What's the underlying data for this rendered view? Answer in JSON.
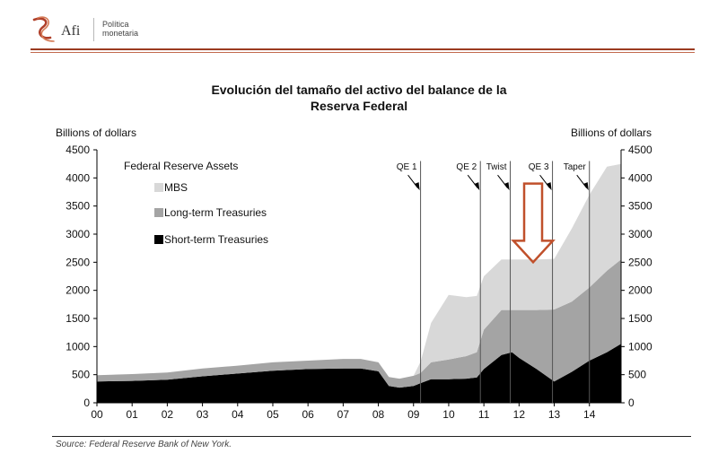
{
  "header": {
    "brand": "Afi",
    "section_line1": "Política",
    "section_line2": "monetaria"
  },
  "source": "Source: Federal Reserve Bank of New York.",
  "colors": {
    "accent": "#9b3b21",
    "mbs": "#d8d8d8",
    "long_term": "#a4a4a4",
    "short_term": "#000000",
    "arrow": "#c0502b"
  },
  "chart_data": {
    "type": "area",
    "stacked": true,
    "title_line1": "Evolución del tamaño del activo del balance de la",
    "title_line2": "Reserva Federal",
    "ylabel_left": "Billions of dollars",
    "ylabel_right": "Billions of dollars",
    "ylim": [
      0,
      4500
    ],
    "yticks": [
      0,
      500,
      1000,
      1500,
      2000,
      2500,
      3000,
      3500,
      4000,
      4500
    ],
    "xlim": [
      2000,
      2014.9
    ],
    "xtick_values": [
      2000,
      2001,
      2002,
      2003,
      2004,
      2005,
      2006,
      2007,
      2008,
      2009,
      2010,
      2011,
      2012,
      2013,
      2014
    ],
    "xtick_labels": [
      "00",
      "01",
      "02",
      "03",
      "04",
      "05",
      "06",
      "07",
      "08",
      "09",
      "10",
      "11",
      "12",
      "13",
      "14"
    ],
    "legend_title": "Federal Reserve Assets",
    "legend_placement": "top-left",
    "x": [
      2000,
      2001,
      2002,
      2003,
      2004,
      2005,
      2006,
      2007,
      2007.5,
      2008,
      2008.3,
      2008.6,
      2009,
      2009.2,
      2009.5,
      2010,
      2010.5,
      2010.8,
      2011,
      2011.5,
      2011.8,
      2012,
      2012.5,
      2013,
      2013.5,
      2014,
      2014.5,
      2014.9
    ],
    "series": [
      {
        "name": "Short-term Treasuries",
        "values": [
          380,
          390,
          410,
          470,
          520,
          570,
          600,
          610,
          610,
          560,
          300,
          270,
          300,
          350,
          420,
          420,
          430,
          450,
          600,
          850,
          900,
          800,
          600,
          380,
          550,
          750,
          900,
          1050
        ]
      },
      {
        "name": "Long-term Treasuries",
        "values": [
          110,
          120,
          130,
          140,
          140,
          150,
          150,
          170,
          170,
          160,
          160,
          160,
          180,
          180,
          300,
          350,
          400,
          450,
          700,
          800,
          750,
          850,
          1050,
          1280,
          1250,
          1300,
          1450,
          1500
        ]
      },
      {
        "name": "MBS",
        "values": [
          0,
          0,
          0,
          0,
          0,
          0,
          0,
          0,
          0,
          0,
          0,
          0,
          0,
          200,
          700,
          1150,
          1050,
          1000,
          950,
          900,
          900,
          900,
          900,
          900,
          1300,
          1650,
          1850,
          1700
        ]
      }
    ],
    "annotations": [
      {
        "label": "QE 1",
        "x": 2009.2
      },
      {
        "label": "QE 2",
        "x": 2010.9
      },
      {
        "label": "Twist",
        "x": 2011.75
      },
      {
        "label": "QE 3",
        "x": 2012.95
      },
      {
        "label": "Taper",
        "x": 2014.0
      }
    ],
    "arrow_annotation": {
      "x": 2012.4,
      "from": 3900,
      "to": 2500
    }
  }
}
